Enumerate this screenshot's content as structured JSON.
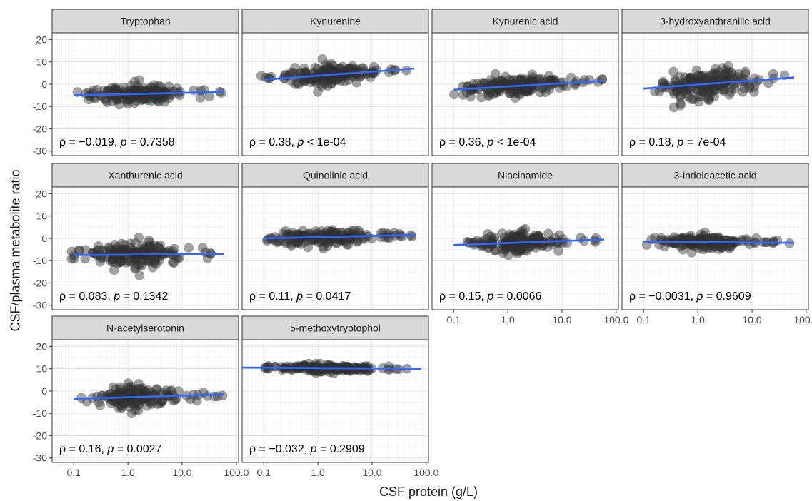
{
  "figure": {
    "ylabel": "CSF/plasma metabolite ratio",
    "xlabel": "CSF protein (g/L)"
  },
  "chart_data": {
    "type": "scatter",
    "facet_layout": "4 columns x 3 rows, free x-axis labels on bottom panel of each column",
    "xscale": "log10",
    "xlim": [
      0.04,
      110
    ],
    "ylim": [
      -32,
      23
    ],
    "grid": true,
    "x_ticks": [
      0.1,
      1.0,
      10.0,
      100.0
    ],
    "x_tick_labels": [
      "0.1",
      "1.0",
      "10.0",
      "100.0"
    ],
    "y_ticks": [
      -30,
      -20,
      -10,
      0,
      10,
      20
    ],
    "y_tick_labels": [
      "-30",
      "-20",
      "-10",
      "0",
      "10",
      "20"
    ],
    "point_color": "#333333",
    "line_color": "#3366ff",
    "strip_color": "#d9d9d9",
    "panels": [
      {
        "name": "Tryptophan",
        "rho": "−0.019",
        "p_op": "=",
        "p": "0.7358",
        "fit": [
          [
            0.1,
            -5
          ],
          [
            60,
            -3.5
          ]
        ],
        "cloud": {
          "y": -4.5,
          "sd": 2.2
        },
        "x_axis": false
      },
      {
        "name": "Kynurenine",
        "rho": "0.38",
        "p_op": "<",
        "p": "1e-04",
        "fit": [
          [
            0.1,
            2
          ],
          [
            60,
            7
          ]
        ],
        "cloud": {
          "y": 4,
          "sd": 2.3
        },
        "x_axis": false
      },
      {
        "name": "Kynurenic acid",
        "rho": "0.36",
        "p_op": "<",
        "p": "1e-04",
        "fit": [
          [
            0.1,
            -2.5
          ],
          [
            60,
            1.5
          ]
        ],
        "cloud": {
          "y": -0.5,
          "sd": 2.6
        },
        "x_axis": false
      },
      {
        "name": "3-hydroxyanthranilic acid",
        "rho": "0.18",
        "p_op": "=",
        "p": "7e-04",
        "fit": [
          [
            0.1,
            -2
          ],
          [
            60,
            3
          ]
        ],
        "cloud": {
          "y": 0.5,
          "sd": 3.8
        },
        "x_axis": false
      },
      {
        "name": "Xanthurenic acid",
        "rho": "0.083",
        "p_op": "=",
        "p": "0.1342",
        "fit": [
          [
            0.1,
            -7.5
          ],
          [
            60,
            -7
          ]
        ],
        "cloud": {
          "y": -7,
          "sd": 3.2
        },
        "x_axis": false
      },
      {
        "name": "Quinolinic acid",
        "rho": "0.11",
        "p_op": "=",
        "p": "0.0417",
        "fit": [
          [
            0.1,
            0
          ],
          [
            60,
            1.5
          ]
        ],
        "cloud": {
          "y": 0.5,
          "sd": 2.0
        },
        "x_axis": false
      },
      {
        "name": "Niacinamide",
        "rho": "0.15",
        "p_op": "=",
        "p": "0.0066",
        "fit": [
          [
            0.1,
            -3
          ],
          [
            60,
            -0.5
          ]
        ],
        "cloud": {
          "y": -1.5,
          "sd": 2.2
        },
        "x_axis": true
      },
      {
        "name": "3-indoleacetic acid",
        "rho": "−0.0031",
        "p_op": "=",
        "p": "0.9609",
        "fit": [
          [
            0.1,
            -1.5
          ],
          [
            60,
            -2
          ]
        ],
        "cloud": {
          "y": -1.5,
          "sd": 1.6
        },
        "x_axis": true
      },
      {
        "name": "N-acetylserotonin",
        "rho": "0.16",
        "p_op": "=",
        "p": "0.0027",
        "fit": [
          [
            0.1,
            -3.5
          ],
          [
            60,
            -1.5
          ]
        ],
        "cloud": {
          "y": -3,
          "sd": 2.8
        },
        "x_axis": true
      },
      {
        "name": "5-methoxytryptophol",
        "rho": "−0.032",
        "p_op": "=",
        "p": "0.2909",
        "fit": [
          [
            0.04,
            10.5
          ],
          [
            80,
            10
          ]
        ],
        "cloud": {
          "y": 10.5,
          "sd": 0.9
        },
        "x_axis": true
      }
    ]
  }
}
